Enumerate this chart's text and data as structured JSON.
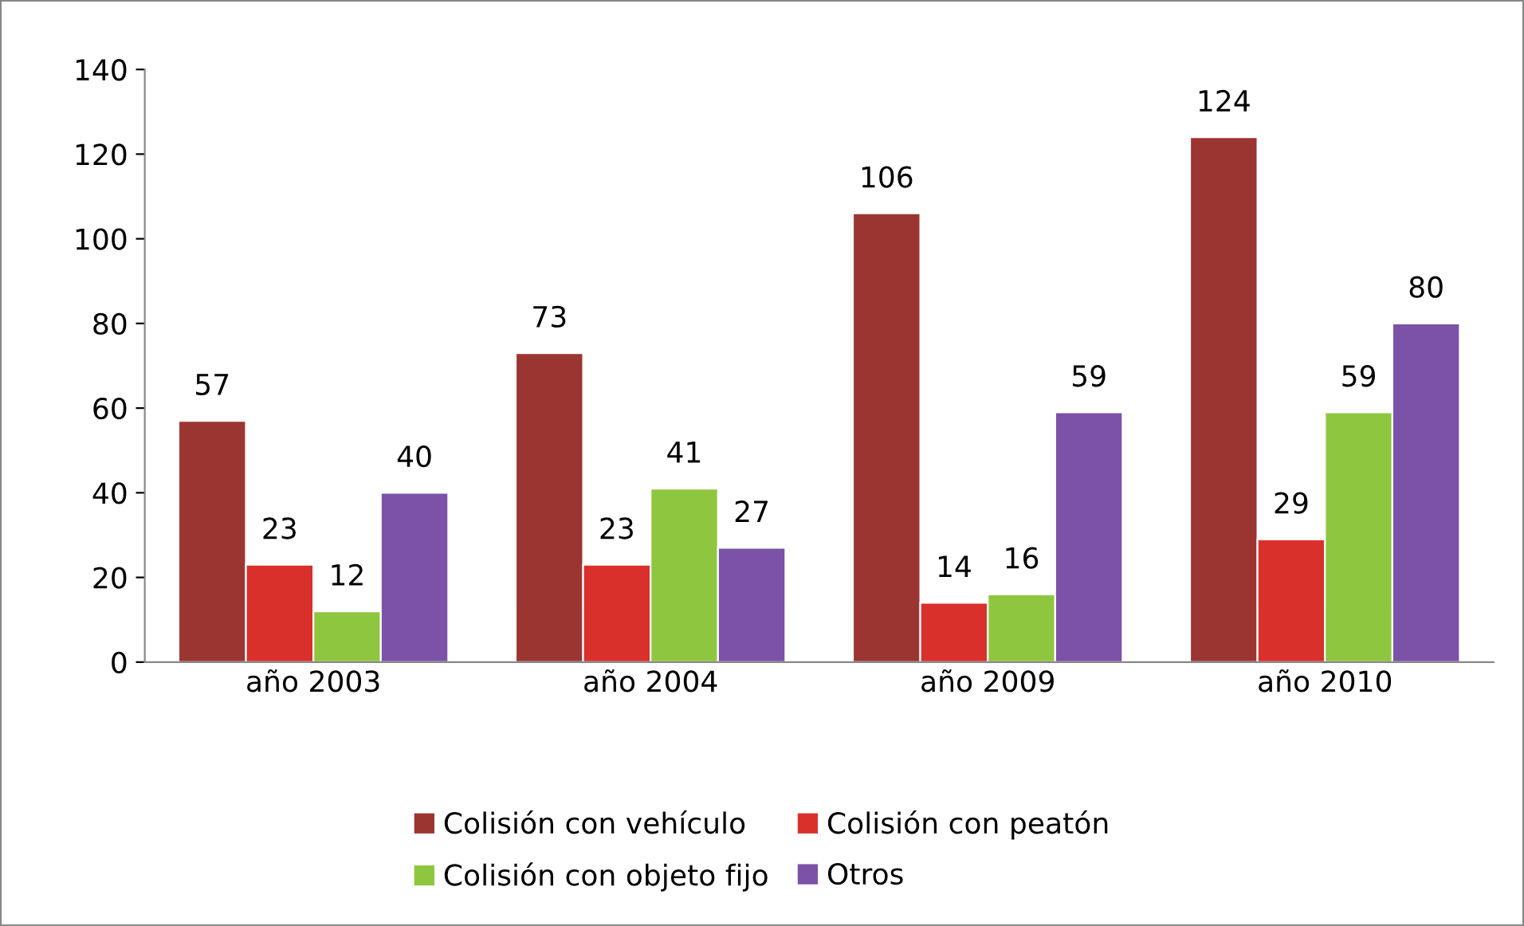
{
  "chart_data": {
    "type": "bar",
    "categories": [
      "año 2003",
      "año 2004",
      "año 2009",
      "año 2010"
    ],
    "series": [
      {
        "name": "Colisión con vehículo",
        "color": "#9b3532",
        "values": [
          57,
          73,
          106,
          124
        ]
      },
      {
        "name": "Colisión con peatón",
        "color": "#d9302b",
        "values": [
          23,
          23,
          14,
          29
        ]
      },
      {
        "name": "Colisión con objeto fijo",
        "color": "#8fc63f",
        "values": [
          12,
          41,
          16,
          59
        ]
      },
      {
        "name": "Otros",
        "color": "#7b52a8",
        "values": [
          40,
          27,
          59,
          80
        ]
      }
    ],
    "ylim": [
      0,
      140
    ],
    "yticks": [
      0,
      20,
      40,
      60,
      80,
      100,
      120,
      140
    ],
    "grid": false,
    "legend": "bottom",
    "data_labels": true
  }
}
